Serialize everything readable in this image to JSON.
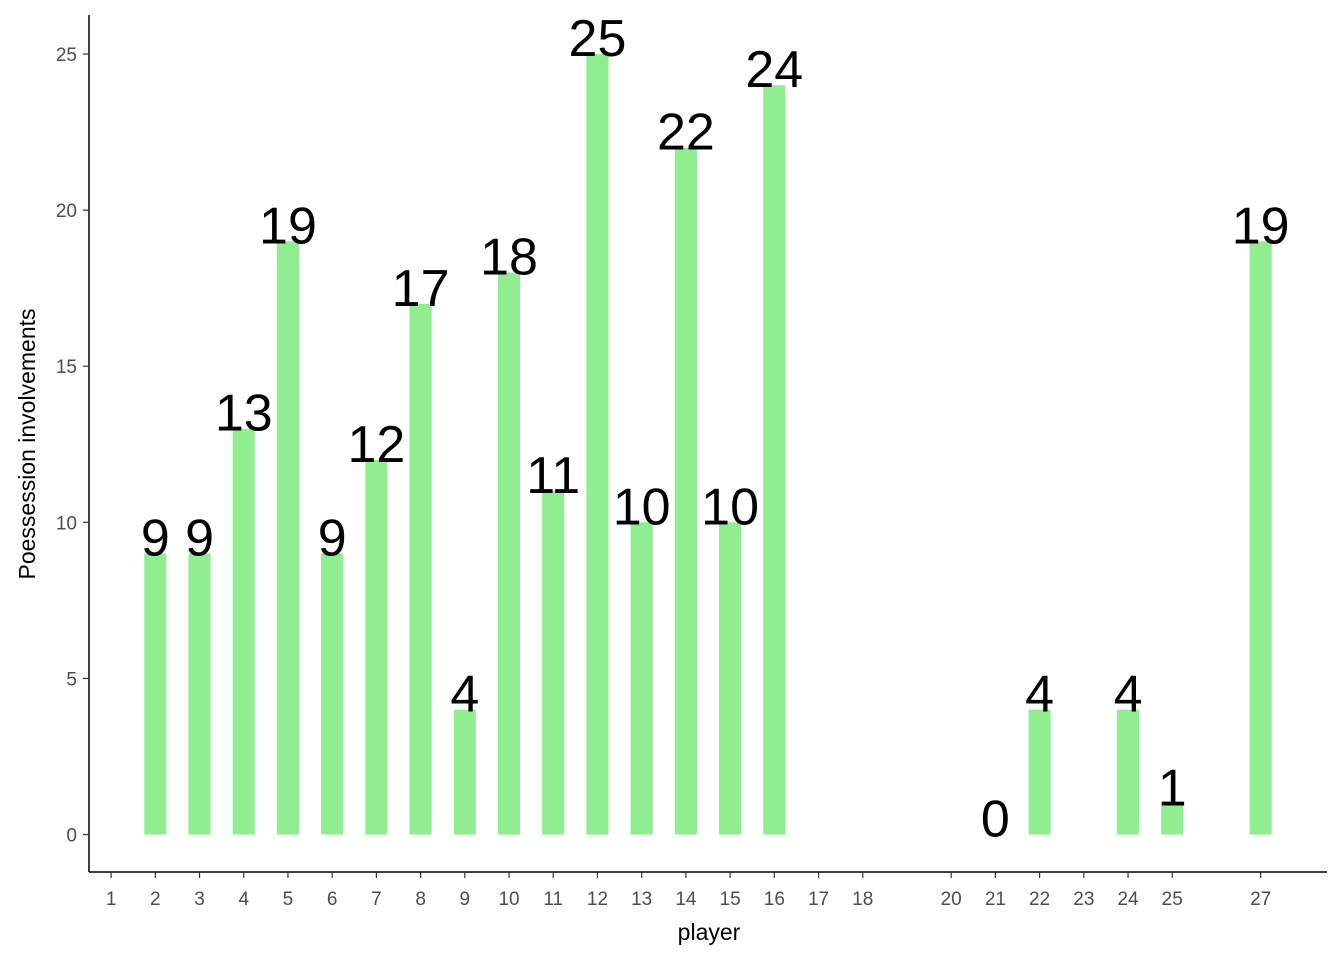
{
  "chart_data": {
    "type": "bar",
    "x_label": "player",
    "y_label": "Poessession involvements",
    "x": [
      2,
      3,
      4,
      5,
      6,
      7,
      8,
      9,
      10,
      11,
      12,
      13,
      14,
      15,
      16,
      21,
      22,
      24,
      25,
      27
    ],
    "values": [
      9,
      9,
      13,
      19,
      9,
      12,
      17,
      4,
      18,
      11,
      25,
      10,
      22,
      10,
      24,
      0,
      4,
      4,
      1,
      19
    ],
    "color": "#90ee90",
    "xlim": [
      0.5,
      28.5
    ],
    "xticks": [
      1,
      2,
      3,
      4,
      5,
      6,
      7,
      8,
      9,
      10,
      11,
      12,
      13,
      14,
      15,
      16,
      17,
      18,
      20,
      21,
      22,
      23,
      24,
      25,
      27
    ],
    "ylim": [
      -1.2,
      26.25
    ],
    "yticks": [
      0,
      5,
      10,
      15,
      20,
      25
    ],
    "grid": false
  }
}
